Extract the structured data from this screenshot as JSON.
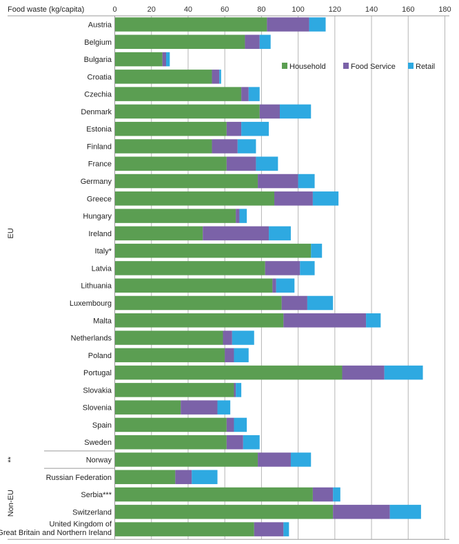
{
  "chart_data": {
    "type": "bar",
    "orientation": "horizontal",
    "stacked": true,
    "title": "",
    "xlabel": "Food waste (kg/capita)",
    "ylabel": "",
    "xlim": [
      0,
      180
    ],
    "xticks": [
      0,
      20,
      40,
      60,
      80,
      100,
      120,
      140,
      160,
      180
    ],
    "grid": true,
    "legend_position": "top-right",
    "categories": [
      "Austria",
      "Belgium",
      "Bulgaria",
      "Croatia",
      "Czechia",
      "Denmark",
      "Estonia",
      "Finland",
      "France",
      "Germany",
      "Greece",
      "Hungary",
      "Ireland",
      "Italy*",
      "Latvia",
      "Lithuania",
      "Luxembourg",
      "Malta",
      "Netherlands",
      "Poland",
      "Portugal",
      "Slovakia",
      "Slovenia",
      "Spain",
      "Sweden",
      "Norway",
      "Russian Federation",
      "Serbia***",
      "Switzerland",
      "United Kingdom of Great Britain and Northern Ireland"
    ],
    "category_lines": {
      "29": [
        "United Kingdom of",
        "Great Britain and Northern Ireland"
      ]
    },
    "groups": [
      {
        "label": "EU",
        "from": 0,
        "to": 24
      },
      {
        "label": "**",
        "from": 25,
        "to": 25
      },
      {
        "label": "Non-EU",
        "from": 26,
        "to": 29
      }
    ],
    "series": [
      {
        "name": "Household",
        "color": "#5b9e52",
        "values": [
          83,
          71,
          26,
          53,
          69,
          79,
          61,
          53,
          61,
          78,
          87,
          66,
          48,
          107,
          82,
          86,
          91,
          92,
          59,
          60,
          124,
          65,
          36,
          61,
          61,
          78,
          33,
          108,
          119,
          76
        ]
      },
      {
        "name": "Food Service",
        "color": "#7b62a8",
        "values": [
          23,
          8,
          2,
          4,
          4,
          11,
          8,
          14,
          16,
          22,
          21,
          2,
          36,
          0,
          19,
          2,
          14,
          45,
          5,
          5,
          23,
          1,
          20,
          4,
          9,
          18,
          9,
          11,
          31,
          16
        ]
      },
      {
        "name": "Retail",
        "color": "#2ea9e1",
        "values": [
          9,
          6,
          2,
          1,
          6,
          17,
          15,
          10,
          12,
          9,
          14,
          4,
          12,
          6,
          8,
          10,
          14,
          8,
          12,
          8,
          21,
          3,
          7,
          7,
          9,
          11,
          14,
          4,
          17,
          3
        ]
      }
    ]
  }
}
